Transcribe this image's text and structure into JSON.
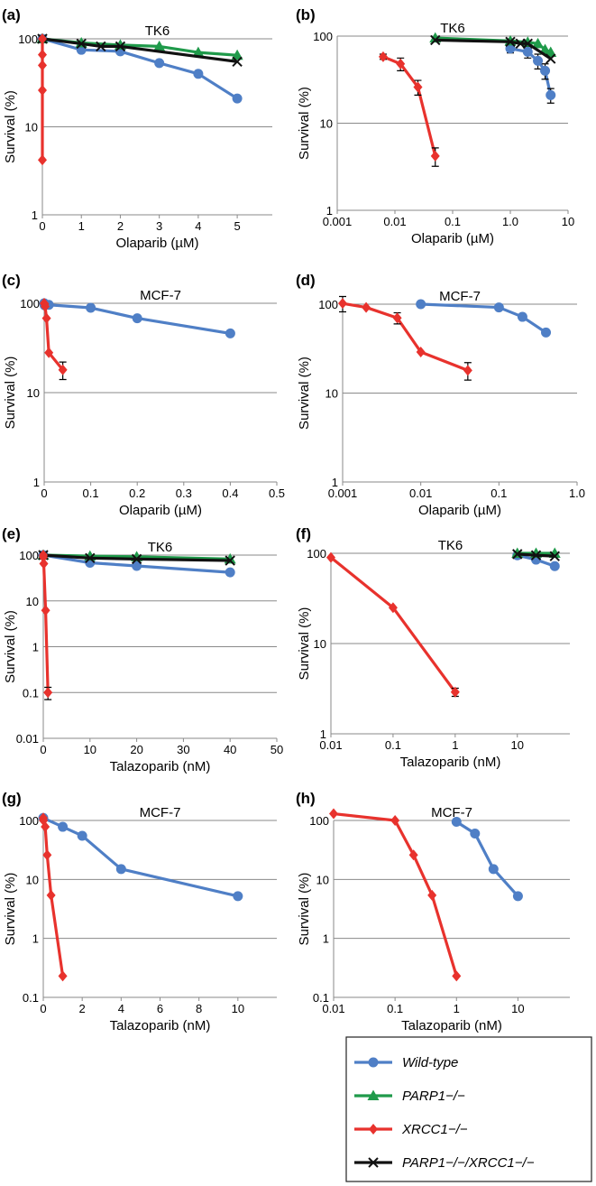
{
  "colors": {
    "wild_type": "#4f7fc6",
    "parp1": "#1f9a4a",
    "xrcc1": "#e8322d",
    "double": "#111111",
    "grid": "#8a8a8a"
  },
  "legend": {
    "items": [
      {
        "key": "wt",
        "label": "Wild-type",
        "marker": "circle",
        "color": "#4f7fc6"
      },
      {
        "key": "parp1",
        "label": "PARP1−/−",
        "marker": "triangle",
        "color": "#1f9a4a"
      },
      {
        "key": "xrcc1",
        "label": "XRCC1−/−",
        "marker": "diamond",
        "color": "#e8322d"
      },
      {
        "key": "dbl",
        "label": "PARP1−/−/XRCC1−/−",
        "marker": "cross",
        "color": "#111111"
      }
    ]
  },
  "chart_data": [
    {
      "panel": "(a)",
      "title": "TK6",
      "type": "line",
      "xlabel": "Olaparib (µM)",
      "ylabel": "Survival (%)",
      "xscale": "linear",
      "yscale": "log",
      "xlim": [
        0,
        5.9
      ],
      "ylim": [
        1,
        100
      ],
      "xticks": [
        0,
        1,
        2,
        3,
        4,
        5
      ],
      "xticklabels": [
        "0",
        "1",
        "2",
        "3",
        "4",
        "5"
      ],
      "yticks": [
        1,
        10,
        100
      ],
      "yticklabels": [
        "1",
        "10",
        "100"
      ],
      "series": [
        {
          "key": "wt",
          "x": [
            0,
            1,
            2,
            3,
            4,
            5
          ],
          "y": [
            100,
            75,
            72,
            53,
            40,
            21
          ]
        },
        {
          "key": "parp1",
          "x": [
            0,
            1,
            2,
            3,
            4,
            5
          ],
          "y": [
            100,
            90,
            85,
            82,
            70,
            65
          ]
        },
        {
          "key": "dbl",
          "x": [
            0,
            1,
            1.5,
            2,
            5
          ],
          "y": [
            100,
            88,
            82,
            82,
            55
          ]
        },
        {
          "key": "xrcc1",
          "x": [
            0,
            0,
            0,
            0,
            0
          ],
          "y": [
            4.2,
            26,
            50,
            66,
            100
          ]
        }
      ]
    },
    {
      "panel": "(b)",
      "title": "TK6",
      "type": "line",
      "xlabel": "Olaparib (µM)",
      "ylabel": "Survival (%)",
      "xscale": "log",
      "yscale": "log",
      "xlim": [
        0.001,
        10
      ],
      "ylim": [
        1,
        100
      ],
      "xticks": [
        0.001,
        0.01,
        0.1,
        1,
        10
      ],
      "xticklabels": [
        "0.001",
        "0.01",
        "0.1",
        "1.0",
        "10"
      ],
      "yticks": [
        1,
        10,
        100
      ],
      "yticklabels": [
        "1",
        "10",
        "100"
      ],
      "series": [
        {
          "key": "xrcc1",
          "x": [
            0.00625,
            0.0125,
            0.025,
            0.05
          ],
          "y": [
            58,
            48,
            26,
            4.2
          ],
          "err": [
            4,
            8,
            5,
            1
          ]
        },
        {
          "key": "wt",
          "x": [
            1,
            2,
            3,
            4,
            5
          ],
          "y": [
            72,
            66,
            52,
            40,
            21
          ],
          "err": [
            8,
            10,
            10,
            8,
            4
          ]
        },
        {
          "key": "parp1",
          "x": [
            0.05,
            1,
            2,
            3,
            4,
            5
          ],
          "y": [
            95,
            88,
            85,
            82,
            70,
            65
          ]
        },
        {
          "key": "dbl",
          "x": [
            0.05,
            1,
            1.5,
            2,
            5
          ],
          "y": [
            90,
            86,
            82,
            82,
            55
          ]
        }
      ]
    },
    {
      "panel": "(c)",
      "title": "MCF-7",
      "type": "line",
      "xlabel": "Olaparib (µM)",
      "ylabel": "Survival (%)",
      "xscale": "linear",
      "yscale": "log",
      "xlim": [
        0,
        0.5
      ],
      "ylim": [
        1,
        100
      ],
      "xticks": [
        0,
        0.1,
        0.2,
        0.3,
        0.4,
        0.5
      ],
      "xticklabels": [
        "0",
        "0.1",
        "0.2",
        "0.3",
        "0.4",
        "0.5"
      ],
      "yticks": [
        1,
        10,
        100
      ],
      "yticklabels": [
        "1",
        "10",
        "100"
      ],
      "series": [
        {
          "key": "wt",
          "x": [
            0,
            0.001,
            0.01,
            0.1,
            0.2,
            0.4
          ],
          "y": [
            100,
            95,
            96,
            89,
            68,
            46
          ]
        },
        {
          "key": "xrcc1",
          "x": [
            0,
            0.001,
            0.002,
            0.005,
            0.01,
            0.04
          ],
          "y": [
            100,
            98,
            92,
            68,
            28,
            18
          ],
          "err": [
            0,
            0,
            0,
            0,
            0,
            4
          ]
        }
      ]
    },
    {
      "panel": "(d)",
      "title": "MCF-7",
      "type": "line",
      "xlabel": "Olaparib (µM)",
      "ylabel": "Survival (%)",
      "xscale": "log",
      "yscale": "log",
      "xlim": [
        0.001,
        1
      ],
      "ylim": [
        1,
        100
      ],
      "xticks": [
        0.001,
        0.01,
        0.1,
        1
      ],
      "xticklabels": [
        "0.001",
        "0.01",
        "0.1",
        "1.0"
      ],
      "yticks": [
        1,
        10,
        100
      ],
      "yticklabels": [
        "1",
        "10",
        "100"
      ],
      "series": [
        {
          "key": "wt",
          "x": [
            0.01,
            0.1,
            0.2,
            0.4
          ],
          "y": [
            100,
            92,
            72,
            48
          ]
        },
        {
          "key": "xrcc1",
          "x": [
            0.001,
            0.002,
            0.005,
            0.01,
            0.04
          ],
          "y": [
            102,
            92,
            70,
            29,
            18
          ],
          "err": [
            20,
            0,
            10,
            0,
            4
          ]
        }
      ]
    },
    {
      "panel": "(e)",
      "title": "TK6",
      "type": "line",
      "xlabel": "Talazoparib (nM)",
      "ylabel": "Survival (%)",
      "xscale": "linear",
      "yscale": "log",
      "xlim": [
        0,
        50
      ],
      "ylim": [
        0.01,
        100
      ],
      "xticks": [
        0,
        10,
        20,
        30,
        40,
        50
      ],
      "xticklabels": [
        "0",
        "10",
        "20",
        "30",
        "40",
        "50"
      ],
      "yticks": [
        0.01,
        0.1,
        1,
        10,
        100
      ],
      "yticklabels": [
        "0.01",
        "0.1",
        "1",
        "10",
        "100"
      ],
      "series": [
        {
          "key": "wt",
          "x": [
            0,
            10,
            20,
            40
          ],
          "y": [
            100,
            68,
            58,
            42
          ]
        },
        {
          "key": "parp1",
          "x": [
            0,
            10,
            20,
            40
          ],
          "y": [
            100,
            95,
            92,
            82
          ]
        },
        {
          "key": "dbl",
          "x": [
            0,
            10,
            20,
            40
          ],
          "y": [
            100,
            86,
            82,
            76
          ]
        },
        {
          "key": "xrcc1",
          "x": [
            0,
            0.01,
            0.1,
            0.5,
            1
          ],
          "y": [
            100,
            90,
            65,
            6.2,
            0.1
          ],
          "err": [
            0,
            0,
            0,
            0,
            0.03
          ]
        }
      ]
    },
    {
      "panel": "(f)",
      "title": "TK6",
      "type": "line",
      "xlabel": "Talazoparib (nM)",
      "ylabel": "Survival (%)",
      "xscale": "log",
      "yscale": "log",
      "xlim": [
        0.01,
        70
      ],
      "ylim": [
        1,
        100
      ],
      "xticks": [
        0.01,
        0.1,
        1,
        10
      ],
      "xticklabels": [
        "0.01",
        "0.1",
        "1",
        "10"
      ],
      "yticks": [
        1,
        10,
        100
      ],
      "yticklabels": [
        "1",
        "10",
        "100"
      ],
      "series": [
        {
          "key": "xrcc1",
          "x": [
            0.01,
            0.1,
            1
          ],
          "y": [
            90,
            25,
            2.9
          ],
          "err": [
            0,
            0,
            0.3
          ]
        },
        {
          "key": "wt",
          "x": [
            10,
            20,
            40
          ],
          "y": [
            95,
            85,
            72
          ]
        },
        {
          "key": "parp1",
          "x": [
            10,
            20,
            40
          ],
          "y": [
            100,
            100,
            100
          ]
        },
        {
          "key": "dbl",
          "x": [
            10,
            20,
            40
          ],
          "y": [
            98,
            95,
            93
          ]
        }
      ]
    },
    {
      "panel": "(g)",
      "title": "MCF-7",
      "type": "line",
      "xlabel": "Talazoparib (nM)",
      "ylabel": "Survival (%)",
      "xscale": "linear",
      "yscale": "log",
      "xlim": [
        0,
        12
      ],
      "ylim": [
        0.1,
        100
      ],
      "xticks": [
        0,
        2,
        4,
        6,
        8,
        10
      ],
      "xticklabels": [
        "0",
        "2",
        "4",
        "6",
        "8",
        "10"
      ],
      "yticks": [
        0.1,
        1,
        10,
        100
      ],
      "yticklabels": [
        "0.1",
        "1",
        "10",
        "100"
      ],
      "series": [
        {
          "key": "wt",
          "x": [
            0,
            1,
            2,
            4,
            10
          ],
          "y": [
            110,
            78,
            55,
            15,
            5.2
          ]
        },
        {
          "key": "xrcc1",
          "x": [
            0,
            0.01,
            0.1,
            0.2,
            0.4,
            1
          ],
          "y": [
            110,
            100,
            78,
            26,
            5.4,
            0.23
          ]
        }
      ]
    },
    {
      "panel": "(h)",
      "title": "MCF-7",
      "type": "line",
      "xlabel": "Talazoparib (nM)",
      "ylabel": "Survival (%)",
      "xscale": "log",
      "yscale": "log",
      "xlim": [
        0.01,
        70
      ],
      "ylim": [
        0.1,
        100
      ],
      "xticks": [
        0.01,
        0.1,
        1,
        10
      ],
      "xticklabels": [
        "0.01",
        "0.1",
        "1",
        "10"
      ],
      "yticks": [
        0.1,
        1,
        10,
        100
      ],
      "yticklabels": [
        "0.1",
        "1",
        "10",
        "100"
      ],
      "series": [
        {
          "key": "xrcc1",
          "x": [
            0.01,
            0.1,
            0.2,
            0.4,
            1
          ],
          "y": [
            130,
            100,
            26,
            5.4,
            0.23
          ]
        },
        {
          "key": "wt",
          "x": [
            1,
            2,
            4,
            10
          ],
          "y": [
            95,
            60,
            15,
            5.2
          ]
        }
      ]
    }
  ]
}
